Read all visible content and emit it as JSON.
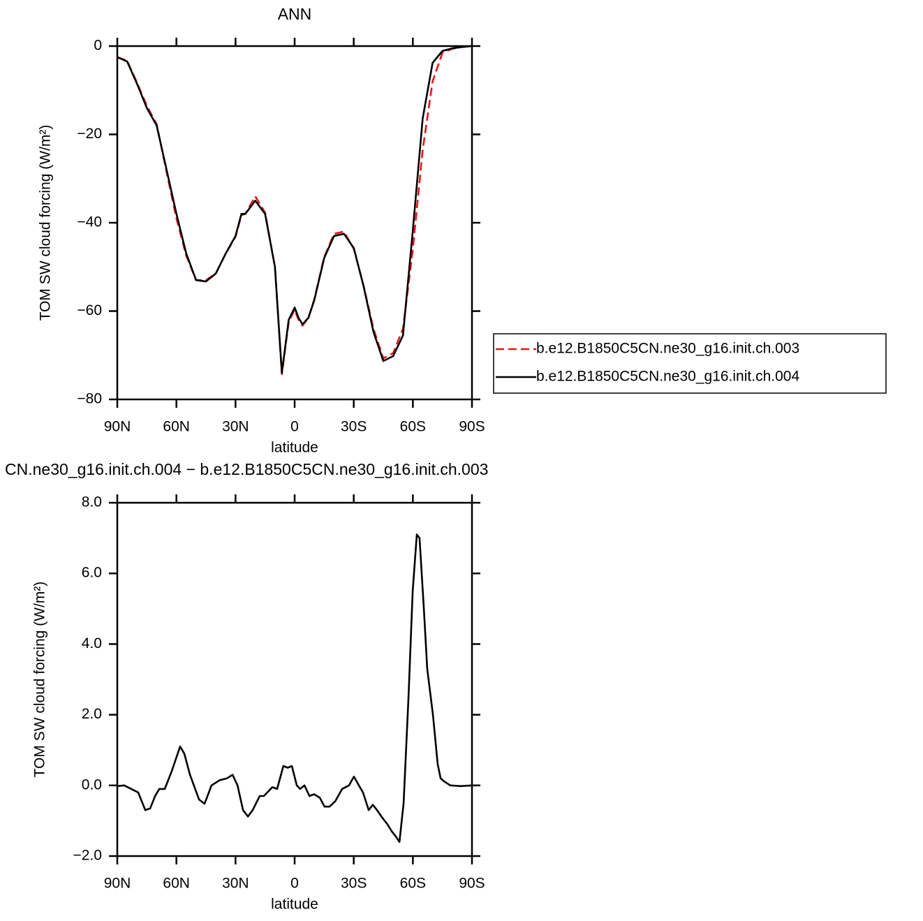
{
  "chart_data": [
    {
      "type": "line",
      "title": "ANN",
      "xlabel": "latitude",
      "ylabel": "TOM SW cloud forcing (W/m²)",
      "x": [
        90,
        85,
        80,
        75,
        70,
        65,
        60,
        55,
        50,
        45,
        40,
        35,
        30,
        27,
        25,
        20,
        15,
        10,
        6.5,
        3,
        0,
        -2,
        -4,
        -7,
        -10,
        -15,
        -20,
        -25,
        -30,
        -35,
        -40,
        -45,
        -50,
        -55,
        -60,
        -65,
        -70,
        -75,
        -80,
        -85,
        -90
      ],
      "series": [
        {
          "name": "b.e12.B1850C5CN.ne30_g16.init.ch.003",
          "color": "#e8141b",
          "dash": true,
          "values": [
            -2.5,
            -3.3,
            -8.3,
            -13.5,
            -17.7,
            -28.5,
            -39,
            -47.5,
            -53,
            -53,
            -51.5,
            -47,
            -43.2,
            -38.3,
            -38,
            -34,
            -37.7,
            -50,
            -74.3,
            -62.5,
            -59.7,
            -62,
            -63.3,
            -61.5,
            -57.3,
            -47.8,
            -42.5,
            -42,
            -45.9,
            -54.3,
            -64,
            -70.7,
            -69.5,
            -64,
            -46,
            -23.5,
            -8,
            -1.5,
            -0.6,
            -0.2,
            0
          ]
        },
        {
          "name": "b.e12.B1850C5CN.ne30_g16.init.ch.004",
          "color": "#000000",
          "dash": false,
          "values": [
            -2.5,
            -3.5,
            -8.5,
            -14,
            -18,
            -28,
            -38,
            -47,
            -53,
            -53.3,
            -51.5,
            -47,
            -43,
            -38,
            -38,
            -35,
            -38,
            -50,
            -74,
            -62,
            -59.2,
            -61.5,
            -63,
            -61.5,
            -57.5,
            -48,
            -43,
            -42.5,
            -45.7,
            -54.4,
            -64.7,
            -71.3,
            -70.2,
            -65.5,
            -41.7,
            -16.4,
            -3.8,
            -1.1,
            -0.5,
            -0.2,
            0
          ]
        }
      ],
      "xlim": [
        90,
        -90
      ],
      "xticks": [
        {
          "value": 90,
          "label": "90N"
        },
        {
          "value": 60,
          "label": "60N"
        },
        {
          "value": 30,
          "label": "30N"
        },
        0,
        {
          "value": -30,
          "label": "30S"
        },
        {
          "value": -60,
          "label": "60S"
        },
        {
          "value": -90,
          "label": "90S"
        }
      ],
      "ylim": [
        -80,
        0
      ],
      "yticks": [
        0,
        {
          "value": -20,
          "label": "−20"
        },
        {
          "value": -40,
          "label": "−40"
        },
        {
          "value": -60,
          "label": "−60"
        },
        {
          "value": -80,
          "label": "−80"
        }
      ],
      "legend": "right"
    },
    {
      "type": "line",
      "title": "CN.ne30_g16.init.ch.004 − b.e12.B1850C5CN.ne30_g16.init.ch.003",
      "xlabel": "latitude",
      "ylabel": "TOM SW cloud forcing (W/m²)",
      "x": [
        90,
        86.5,
        81.1,
        79.4,
        75.8,
        73.3,
        70.8,
        68.7,
        65.9,
        62.4,
        58.1,
        56,
        53.1,
        48.5,
        45.7,
        42.2,
        37.9,
        34.4,
        31.5,
        29,
        26.2,
        23.7,
        21.3,
        17.7,
        15.6,
        11.3,
        8.9,
        5.7,
        3.5,
        1.4,
        -1.1,
        -2.8,
        -5,
        -7.5,
        -9.9,
        -12.8,
        -15.2,
        -17.7,
        -20.6,
        -24.1,
        -27.6,
        -30.1,
        -32.6,
        -34.7,
        -37.6,
        -39.7,
        -41.8,
        -44.3,
        -47.1,
        -49.3,
        -51.4,
        -53.2,
        -55.3,
        -57.8,
        -59.9,
        -62,
        -63.4,
        -65.6,
        -67.3,
        -70.2,
        -72.6,
        -74.1,
        -76.2,
        -79,
        -84.3,
        -90
      ],
      "values": [
        -0.02,
        0,
        -0.15,
        -0.2,
        -0.7,
        -0.65,
        -0.3,
        -0.1,
        -0.1,
        0.4,
        1.1,
        0.9,
        0.3,
        -0.4,
        -0.52,
        0,
        0.15,
        0.2,
        0.3,
        0,
        -0.7,
        -0.88,
        -0.7,
        -0.3,
        -0.3,
        -0.05,
        -0.1,
        0.55,
        0.5,
        0.55,
        0,
        -0.1,
        0,
        -0.3,
        -0.25,
        -0.35,
        -0.6,
        -0.6,
        -0.45,
        -0.1,
        0,
        0.25,
        0,
        -0.2,
        -0.7,
        -0.55,
        -0.7,
        -0.9,
        -1.1,
        -1.3,
        -1.45,
        -1.6,
        -0.5,
        2.5,
        5.5,
        7.1,
        7,
        5,
        3.3,
        2,
        0.6,
        0.2,
        0.1,
        0,
        -0.02,
        0
      ],
      "color": "#000000",
      "xlim": [
        90,
        -90
      ],
      "xticks": [
        {
          "value": 90,
          "label": "90N"
        },
        {
          "value": 60,
          "label": "60N"
        },
        {
          "value": 30,
          "label": "30N"
        },
        0,
        {
          "value": -30,
          "label": "30S"
        },
        {
          "value": -60,
          "label": "60S"
        },
        {
          "value": -90,
          "label": "90S"
        }
      ],
      "ylim": [
        -2,
        8
      ],
      "yticks": [
        {
          "value": -2,
          "label": "−2.0"
        },
        {
          "value": 0,
          "label": "0.0"
        },
        {
          "value": 2,
          "label": "2.0"
        },
        {
          "value": 4,
          "label": "4.0"
        },
        {
          "value": 6,
          "label": "6.0"
        },
        {
          "value": 8,
          "label": "8.0"
        }
      ]
    }
  ]
}
